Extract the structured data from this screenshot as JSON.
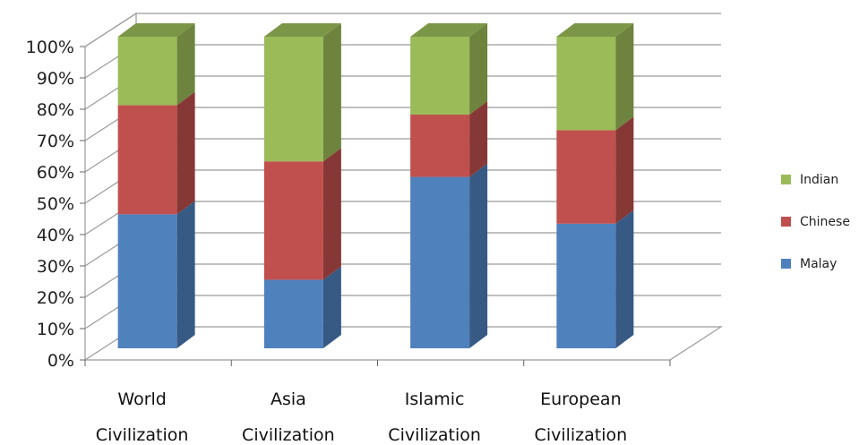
{
  "chart_data": {
    "type": "bar",
    "stacked": true,
    "percent": true,
    "three_d": true,
    "categories": [
      [
        "World",
        "Civilization"
      ],
      [
        "Asia",
        "Civilization"
      ],
      [
        "Islamic",
        "Civilization"
      ],
      [
        "European",
        "Civilization"
      ]
    ],
    "series": [
      {
        "name": "Malay",
        "values": [
          43,
          22,
          55,
          40
        ],
        "color": "#4f81bd"
      },
      {
        "name": "Chinese",
        "values": [
          35,
          38,
          20,
          30
        ],
        "color": "#c0504d"
      },
      {
        "name": "Indian",
        "values": [
          22,
          40,
          25,
          30
        ],
        "color": "#9bbb59"
      }
    ],
    "yticks": [
      "0%",
      "10%",
      "20%",
      "30%",
      "40%",
      "50%",
      "60%",
      "70%",
      "80%",
      "90%",
      "100%"
    ],
    "ylim": [
      0,
      100
    ],
    "grid": true,
    "legend": "right"
  }
}
